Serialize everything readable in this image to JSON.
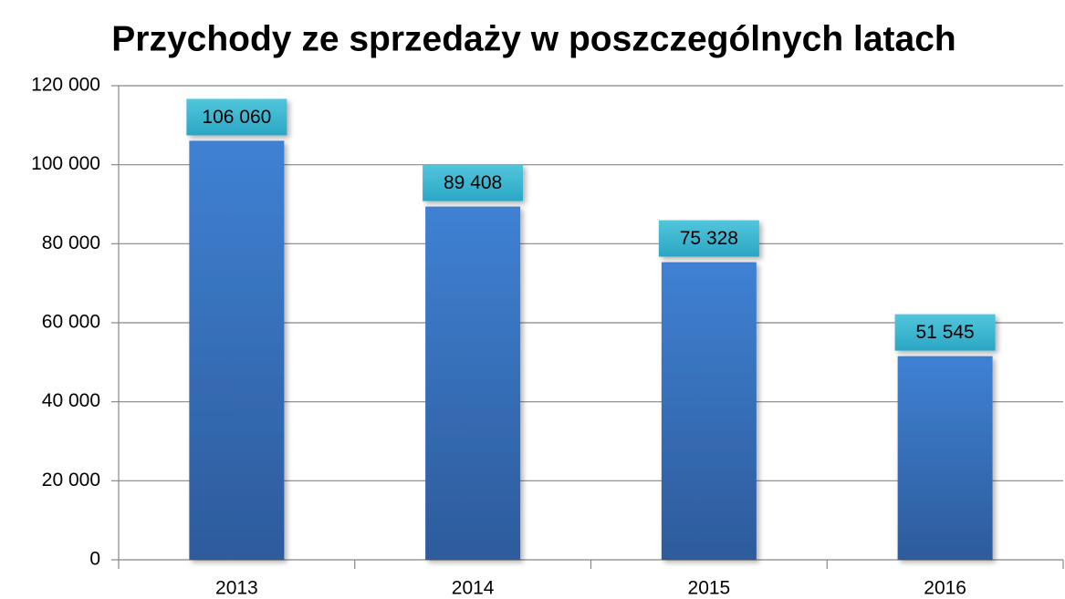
{
  "chart_data": {
    "type": "bar",
    "title": "Przychody ze sprzedaży w poszczególnych latach",
    "categories": [
      "2013",
      "2014",
      "2015",
      "2016"
    ],
    "values": [
      106060,
      89408,
      75328,
      51545
    ],
    "value_labels": [
      "106 060",
      "89 408",
      "75 328",
      "51 545"
    ],
    "color": "#3a78c9",
    "ylim": [
      0,
      120000
    ],
    "yticks": [
      0,
      {
        "value": 20000,
        "label": "20 000"
      },
      {
        "value": 40000,
        "label": "40 000"
      },
      {
        "value": 60000,
        "label": "60 000"
      },
      {
        "value": 80000,
        "label": "80 000"
      },
      {
        "value": 100000,
        "label": "100 000"
      },
      {
        "value": 120000,
        "label": "120 000"
      }
    ],
    "grid": true
  }
}
